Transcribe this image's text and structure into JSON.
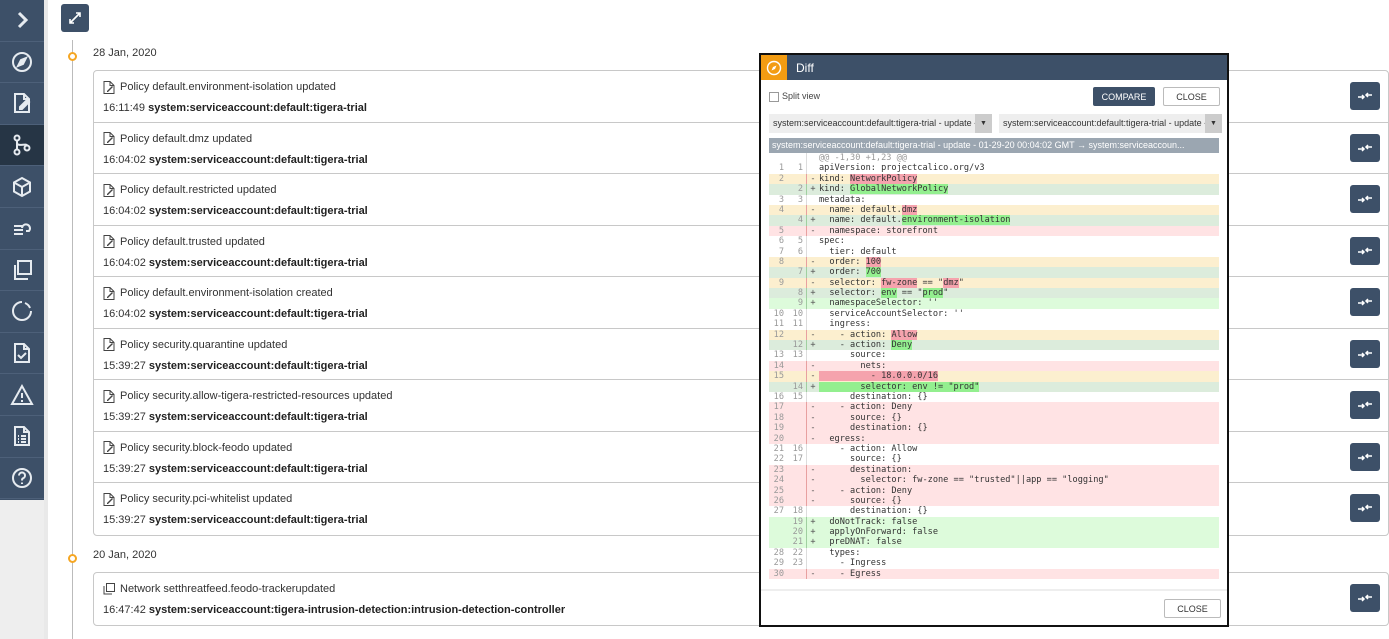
{
  "sidebar": {
    "items": [
      {
        "icon": "chevron-right-icon"
      },
      {
        "icon": "compass-icon"
      },
      {
        "icon": "edit-document-icon"
      },
      {
        "icon": "branch-icon",
        "active": true
      },
      {
        "icon": "cube-icon"
      },
      {
        "icon": "database-cloud-icon"
      },
      {
        "icon": "copy-icon"
      },
      {
        "icon": "refresh-icon"
      },
      {
        "icon": "check-document-icon"
      },
      {
        "icon": "warning-icon"
      },
      {
        "icon": "list-document-icon"
      },
      {
        "icon": "help-icon"
      }
    ]
  },
  "timeline": [
    {
      "date": "28 Jan, 2020",
      "entries": [
        {
          "icon": "edit-document-icon",
          "title": "Policy default.environment-isolation updated",
          "time": "16:11:49",
          "user": "system:serviceaccount:default:tigera-trial"
        },
        {
          "icon": "edit-document-icon",
          "title": "Policy default.dmz updated",
          "time": "16:04:02",
          "user": "system:serviceaccount:default:tigera-trial"
        },
        {
          "icon": "edit-document-icon",
          "title": "Policy default.restricted updated",
          "time": "16:04:02",
          "user": "system:serviceaccount:default:tigera-trial"
        },
        {
          "icon": "edit-document-icon",
          "title": "Policy default.trusted updated",
          "time": "16:04:02",
          "user": "system:serviceaccount:default:tigera-trial"
        },
        {
          "icon": "edit-document-icon",
          "title": "Policy default.environment-isolation created",
          "time": "16:04:02",
          "user": "system:serviceaccount:default:tigera-trial"
        },
        {
          "icon": "edit-document-icon",
          "title": "Policy security.quarantine updated",
          "time": "15:39:27",
          "user": "system:serviceaccount:default:tigera-trial"
        },
        {
          "icon": "edit-document-icon",
          "title": "Policy security.allow-tigera-restricted-resources updated",
          "time": "15:39:27",
          "user": "system:serviceaccount:default:tigera-trial"
        },
        {
          "icon": "edit-document-icon",
          "title": "Policy security.block-feodo updated",
          "time": "15:39:27",
          "user": "system:serviceaccount:default:tigera-trial"
        },
        {
          "icon": "edit-document-icon",
          "title": "Policy security.pci-whitelist updated",
          "time": "15:39:27",
          "user": "system:serviceaccount:default:tigera-trial"
        }
      ]
    },
    {
      "date": "20 Jan, 2020",
      "entries": [
        {
          "icon": "copy-icon",
          "title": "Network setthreatfeed.feodo-trackerupdated",
          "time": "16:47:42",
          "user": "system:serviceaccount:tigera-intrusion-detection:intrusion-detection-controller"
        }
      ]
    }
  ],
  "diff_modal": {
    "title": "Diff",
    "split_view_label": "Split view",
    "split_view_checked": false,
    "compare_label": "COMPARE",
    "close_label": "CLOSE",
    "left_select": "system:serviceaccount:default:tigera-trial - update - ",
    "right_select": "system:serviceaccount:default:tigera-trial - update - ",
    "header": "system:serviceaccount:default:tigera-trial - update - 01-29-20 00:04:02 GMT → system:serviceaccoun...",
    "footer_close_label": "CLOSE",
    "colors": {
      "header": "#3d5068",
      "accent": "#f39c12",
      "removed": "#f5a3ad",
      "added": "#93ef8f"
    },
    "lines": [
      {
        "type": "hunk",
        "o": "",
        "n": "",
        "s": "",
        "code": [
          {
            "t": "@@ -1,30 +1,23 @@"
          }
        ]
      },
      {
        "type": "ctx",
        "o": "1",
        "n": "1",
        "s": "",
        "code": [
          {
            "t": "apiVersion: projectcalico.org/v3"
          }
        ]
      },
      {
        "type": "delm",
        "o": "2",
        "n": "",
        "s": "-",
        "code": [
          {
            "t": "kind: "
          },
          {
            "t": "NetworkPolicy",
            "hl": true
          }
        ]
      },
      {
        "type": "addm",
        "o": "",
        "n": "2",
        "s": "+",
        "code": [
          {
            "t": "kind: "
          },
          {
            "t": "GlobalNetworkPolicy",
            "hl": true
          }
        ]
      },
      {
        "type": "ctx",
        "o": "3",
        "n": "3",
        "s": "",
        "code": [
          {
            "t": "metadata:"
          }
        ]
      },
      {
        "type": "delm",
        "o": "4",
        "n": "",
        "s": "-",
        "code": [
          {
            "t": "  name: default."
          },
          {
            "t": "dmz",
            "hl": true
          }
        ]
      },
      {
        "type": "addm",
        "o": "",
        "n": "4",
        "s": "+",
        "code": [
          {
            "t": "  name: default."
          },
          {
            "t": "environment-isolation",
            "hl": true
          }
        ]
      },
      {
        "type": "del",
        "o": "5",
        "n": "",
        "s": "-",
        "code": [
          {
            "t": "  namespace: storefront"
          }
        ]
      },
      {
        "type": "ctx",
        "o": "6",
        "n": "5",
        "s": "",
        "code": [
          {
            "t": "spec:"
          }
        ]
      },
      {
        "type": "ctx",
        "o": "7",
        "n": "6",
        "s": "",
        "code": [
          {
            "t": "  tier: default"
          }
        ]
      },
      {
        "type": "delm",
        "o": "8",
        "n": "",
        "s": "-",
        "code": [
          {
            "t": "  order: "
          },
          {
            "t": "100",
            "hl": true
          }
        ]
      },
      {
        "type": "addm",
        "o": "",
        "n": "7",
        "s": "+",
        "code": [
          {
            "t": "  order: "
          },
          {
            "t": "700",
            "hl": true
          }
        ]
      },
      {
        "type": "delm",
        "o": "9",
        "n": "",
        "s": "-",
        "code": [
          {
            "t": "  selector: "
          },
          {
            "t": "fw-zone",
            "hl": true
          },
          {
            "t": " == \""
          },
          {
            "t": "dmz",
            "hl": true
          },
          {
            "t": "\""
          }
        ]
      },
      {
        "type": "addm",
        "o": "",
        "n": "8",
        "s": "+",
        "code": [
          {
            "t": "  selector: "
          },
          {
            "t": "env",
            "hl": true
          },
          {
            "t": " == \""
          },
          {
            "t": "prod",
            "hl": true
          },
          {
            "t": "\""
          }
        ]
      },
      {
        "type": "add",
        "o": "",
        "n": "9",
        "s": "+",
        "code": [
          {
            "t": "  namespaceSelector: ''"
          }
        ]
      },
      {
        "type": "ctx",
        "o": "10",
        "n": "10",
        "s": "",
        "code": [
          {
            "t": "  serviceAccountSelector: ''"
          }
        ]
      },
      {
        "type": "ctx",
        "o": "11",
        "n": "11",
        "s": "",
        "code": [
          {
            "t": "  ingress:"
          }
        ]
      },
      {
        "type": "delm",
        "o": "12",
        "n": "",
        "s": "-",
        "code": [
          {
            "t": "    - action: "
          },
          {
            "t": "Allow",
            "hl": true
          }
        ]
      },
      {
        "type": "addm",
        "o": "",
        "n": "12",
        "s": "+",
        "code": [
          {
            "t": "    - action: "
          },
          {
            "t": "Deny",
            "hl": true
          }
        ]
      },
      {
        "type": "ctx",
        "o": "13",
        "n": "13",
        "s": "",
        "code": [
          {
            "t": "      source:"
          }
        ]
      },
      {
        "type": "del",
        "o": "14",
        "n": "",
        "s": "-",
        "code": [
          {
            "t": "        nets:"
          }
        ]
      },
      {
        "type": "delm",
        "o": "15",
        "n": "",
        "s": "-",
        "code": [
          {
            "t": "          - 18.0.0.0/16",
            "hl": true
          }
        ]
      },
      {
        "type": "addm",
        "o": "",
        "n": "14",
        "s": "+",
        "code": [
          {
            "t": "        selector: env != \"prod\"",
            "hl": true
          }
        ]
      },
      {
        "type": "ctx",
        "o": "16",
        "n": "15",
        "s": "",
        "code": [
          {
            "t": "      destination: {}"
          }
        ]
      },
      {
        "type": "del",
        "o": "17",
        "n": "",
        "s": "-",
        "code": [
          {
            "t": "    - action: Deny"
          }
        ]
      },
      {
        "type": "del",
        "o": "18",
        "n": "",
        "s": "-",
        "code": [
          {
            "t": "      source: {}"
          }
        ]
      },
      {
        "type": "del",
        "o": "19",
        "n": "",
        "s": "-",
        "code": [
          {
            "t": "      destination: {}"
          }
        ]
      },
      {
        "type": "del",
        "o": "20",
        "n": "",
        "s": "-",
        "code": [
          {
            "t": "  egress:"
          }
        ]
      },
      {
        "type": "ctx",
        "o": "21",
        "n": "16",
        "s": "",
        "code": [
          {
            "t": "    - action: Allow"
          }
        ]
      },
      {
        "type": "ctx",
        "o": "22",
        "n": "17",
        "s": "",
        "code": [
          {
            "t": "      source: {}"
          }
        ]
      },
      {
        "type": "del",
        "o": "23",
        "n": "",
        "s": "-",
        "code": [
          {
            "t": "      destination:"
          }
        ]
      },
      {
        "type": "del",
        "o": "24",
        "n": "",
        "s": "-",
        "code": [
          {
            "t": "        selector: fw-zone == \"trusted\"||app == \"logging\""
          }
        ]
      },
      {
        "type": "del",
        "o": "25",
        "n": "",
        "s": "-",
        "code": [
          {
            "t": "    - action: Deny"
          }
        ]
      },
      {
        "type": "del",
        "o": "26",
        "n": "",
        "s": "-",
        "code": [
          {
            "t": "      source: {}"
          }
        ]
      },
      {
        "type": "ctx",
        "o": "27",
        "n": "18",
        "s": "",
        "code": [
          {
            "t": "      destination: {}"
          }
        ]
      },
      {
        "type": "add",
        "o": "",
        "n": "19",
        "s": "+",
        "code": [
          {
            "t": "  doNotTrack: false"
          }
        ]
      },
      {
        "type": "add",
        "o": "",
        "n": "20",
        "s": "+",
        "code": [
          {
            "t": "  applyOnForward: false"
          }
        ]
      },
      {
        "type": "add",
        "o": "",
        "n": "21",
        "s": "+",
        "code": [
          {
            "t": "  preDNAT: false"
          }
        ]
      },
      {
        "type": "ctx",
        "o": "28",
        "n": "22",
        "s": "",
        "code": [
          {
            "t": "  types:"
          }
        ]
      },
      {
        "type": "ctx",
        "o": "29",
        "n": "23",
        "s": "",
        "code": [
          {
            "t": "    - Ingress"
          }
        ]
      },
      {
        "type": "del",
        "o": "30",
        "n": "",
        "s": "-",
        "code": [
          {
            "t": "    - Egress"
          }
        ]
      }
    ]
  }
}
